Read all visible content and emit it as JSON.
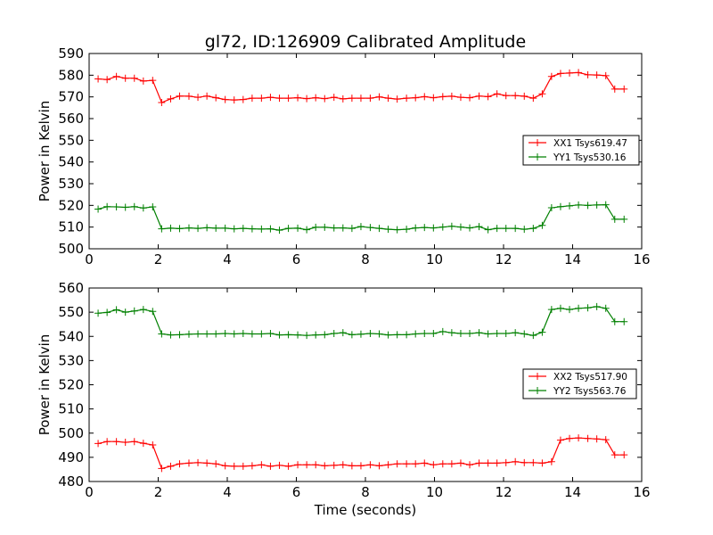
{
  "figure": {
    "title": "gl72, ID:126909 Calibrated Amplitude"
  },
  "chart_data": [
    {
      "type": "line",
      "title": "gl72, ID:126909 Calibrated Amplitude",
      "xlabel": "",
      "ylabel": "Power in Kelvin",
      "xlim": [
        0,
        16
      ],
      "ylim": [
        500,
        590
      ],
      "xticks": [
        0,
        2,
        4,
        6,
        8,
        10,
        12,
        14,
        16
      ],
      "yticks": [
        500,
        510,
        520,
        530,
        540,
        550,
        560,
        570,
        580,
        590
      ],
      "grid": false,
      "legend_position": "center-right",
      "x": [
        0.26,
        0.52,
        0.79,
        1.05,
        1.31,
        1.57,
        1.84,
        2.1,
        2.36,
        2.62,
        2.89,
        3.15,
        3.41,
        3.67,
        3.94,
        4.2,
        4.46,
        4.72,
        4.99,
        5.25,
        5.51,
        5.77,
        6.04,
        6.3,
        6.56,
        6.82,
        7.09,
        7.35,
        7.61,
        7.87,
        8.14,
        8.4,
        8.66,
        8.92,
        9.19,
        9.45,
        9.71,
        9.97,
        10.24,
        10.5,
        10.76,
        11.02,
        11.29,
        11.55,
        11.81,
        12.07,
        12.34,
        12.6,
        12.86,
        13.12,
        13.39,
        13.65,
        13.91,
        14.17,
        14.44,
        14.7,
        14.96,
        15.22,
        15.49
      ],
      "series": [
        {
          "name": "XX1 Tsys619.47",
          "color": "#ff0000",
          "values": [
            578.3,
            578.0,
            579.4,
            578.6,
            578.6,
            577.3,
            577.6,
            567.4,
            569.1,
            570.4,
            570.3,
            569.8,
            570.4,
            569.6,
            568.8,
            568.6,
            568.8,
            569.4,
            569.4,
            569.8,
            569.4,
            569.4,
            569.6,
            569.2,
            569.6,
            569.2,
            569.8,
            569.1,
            569.4,
            569.4,
            569.4,
            570.0,
            569.4,
            569.0,
            569.4,
            569.6,
            570.1,
            569.6,
            570.1,
            570.3,
            569.8,
            569.6,
            570.4,
            570.1,
            571.4,
            570.6,
            570.6,
            570.3,
            569.4,
            571.4,
            579.4,
            580.8,
            581.0,
            581.2,
            580.2,
            580.1,
            579.8,
            573.6,
            573.6
          ]
        },
        {
          "name": "YY1 Tsys530.16",
          "color": "#008000",
          "values": [
            518.3,
            519.4,
            519.3,
            519.1,
            519.4,
            518.8,
            519.3,
            509.2,
            509.5,
            509.3,
            509.6,
            509.4,
            509.7,
            509.5,
            509.5,
            509.2,
            509.4,
            509.2,
            509.1,
            509.2,
            508.6,
            509.4,
            509.5,
            508.8,
            509.9,
            509.9,
            509.6,
            509.6,
            509.4,
            510.2,
            509.8,
            509.4,
            509.0,
            508.8,
            509.0,
            509.6,
            509.8,
            509.6,
            510.0,
            510.4,
            510.0,
            509.6,
            510.2,
            508.8,
            509.4,
            509.4,
            509.4,
            509.0,
            509.4,
            510.8,
            518.9,
            519.4,
            519.8,
            520.2,
            520.0,
            520.2,
            520.3,
            513.6,
            513.6
          ]
        }
      ]
    },
    {
      "type": "line",
      "title": "",
      "xlabel": "Time (seconds)",
      "ylabel": "Power in Kelvin",
      "xlim": [
        0,
        16
      ],
      "ylim": [
        480,
        560
      ],
      "xticks": [
        0,
        2,
        4,
        6,
        8,
        10,
        12,
        14,
        16
      ],
      "yticks": [
        480,
        490,
        500,
        510,
        520,
        530,
        540,
        550,
        560
      ],
      "grid": false,
      "legend_position": "center-right",
      "x": [
        0.26,
        0.52,
        0.79,
        1.05,
        1.31,
        1.57,
        1.84,
        2.1,
        2.36,
        2.62,
        2.89,
        3.15,
        3.41,
        3.67,
        3.94,
        4.2,
        4.46,
        4.72,
        4.99,
        5.25,
        5.51,
        5.77,
        6.04,
        6.3,
        6.56,
        6.82,
        7.09,
        7.35,
        7.61,
        7.87,
        8.14,
        8.4,
        8.66,
        8.92,
        9.19,
        9.45,
        9.71,
        9.97,
        10.24,
        10.5,
        10.76,
        11.02,
        11.29,
        11.55,
        11.81,
        12.07,
        12.34,
        12.6,
        12.86,
        13.12,
        13.39,
        13.65,
        13.91,
        14.17,
        14.44,
        14.7,
        14.96,
        15.22,
        15.49
      ],
      "series": [
        {
          "name": "XX2 Tsys517.90",
          "color": "#ff0000",
          "values": [
            495.7,
            496.5,
            496.5,
            496.2,
            496.5,
            495.8,
            495.1,
            485.4,
            486.3,
            487.3,
            487.6,
            487.8,
            487.6,
            487.3,
            486.5,
            486.3,
            486.3,
            486.5,
            486.9,
            486.3,
            486.7,
            486.3,
            486.9,
            486.9,
            486.9,
            486.5,
            486.7,
            486.9,
            486.5,
            486.5,
            486.9,
            486.5,
            486.9,
            487.3,
            487.3,
            487.3,
            487.6,
            486.9,
            487.3,
            487.3,
            487.6,
            486.9,
            487.6,
            487.6,
            487.6,
            487.8,
            488.2,
            487.8,
            487.8,
            487.6,
            488.2,
            497.1,
            497.8,
            498.0,
            497.8,
            497.6,
            497.3,
            491.0,
            491.0
          ]
        },
        {
          "name": "YY2 Tsys563.76",
          "color": "#008000",
          "values": [
            549.6,
            549.9,
            551.0,
            550.0,
            550.5,
            551.1,
            550.3,
            541.0,
            540.6,
            540.7,
            540.9,
            541.0,
            541.0,
            541.0,
            541.2,
            541.0,
            541.2,
            541.0,
            541.0,
            541.2,
            540.6,
            540.7,
            540.6,
            540.4,
            540.6,
            540.7,
            541.2,
            541.5,
            540.7,
            540.9,
            541.2,
            541.0,
            540.6,
            540.7,
            540.7,
            541.0,
            541.2,
            541.2,
            542.0,
            541.5,
            541.2,
            541.2,
            541.5,
            541.0,
            541.2,
            541.2,
            541.5,
            541.0,
            540.4,
            541.7,
            551.1,
            551.6,
            551.1,
            551.6,
            551.8,
            552.3,
            551.6,
            546.1,
            546.1
          ]
        }
      ]
    }
  ]
}
